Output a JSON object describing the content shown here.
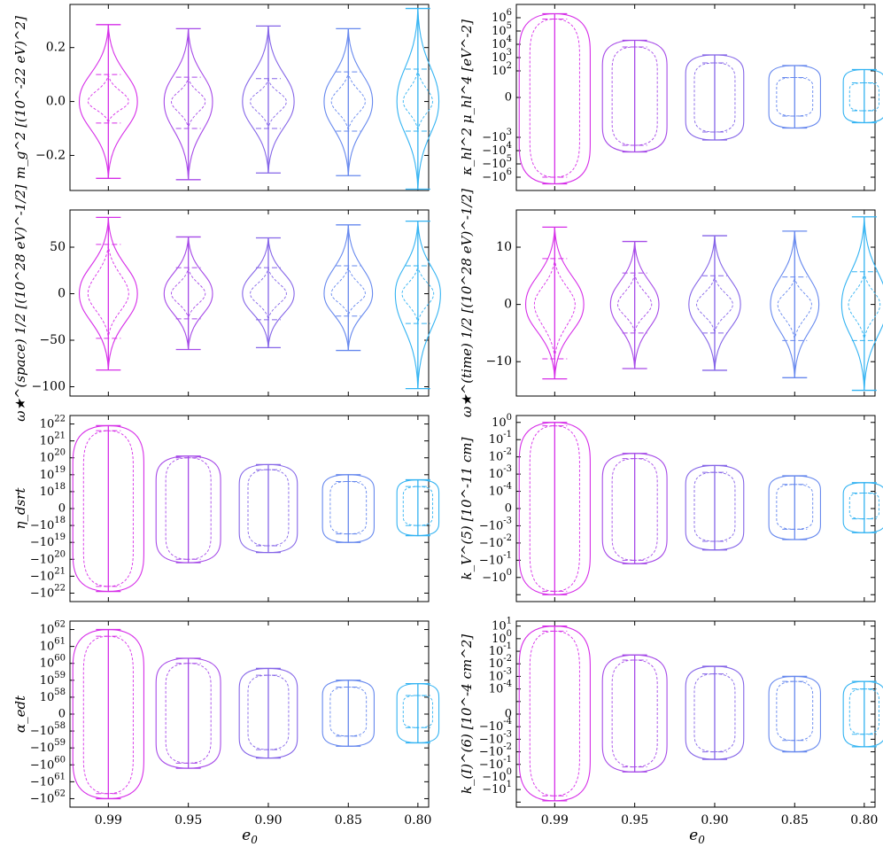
{
  "figure": {
    "xlabel_main": "e",
    "xlabel_sub": "0",
    "colors": [
      "#d62ee8",
      "#a64ae8",
      "#8565e8",
      "#6688ee",
      "#33b3f2"
    ]
  },
  "chart_data": [
    {
      "type": "violin",
      "ylabel": "m_g^2 [(10^-22 eV)^2]",
      "yscale": "linear",
      "ylim": [
        -0.33,
        0.36
      ],
      "yticks": [
        -0.2,
        0.0,
        0.2
      ],
      "ytick_labels": [
        "−0.2",
        "0.0",
        "0.2"
      ],
      "categories": [
        "0.99",
        "0.95",
        "0.90",
        "0.85",
        "0.80"
      ],
      "violins": [
        {
          "min": -0.285,
          "max": 0.285,
          "q1": -0.08,
          "q3": 0.1,
          "width": 0.18
        },
        {
          "min": -0.29,
          "max": 0.27,
          "q1": -0.1,
          "q3": 0.09,
          "width": 0.15
        },
        {
          "min": -0.265,
          "max": 0.28,
          "q1": -0.1,
          "q3": 0.085,
          "width": 0.16
        },
        {
          "min": -0.275,
          "max": 0.27,
          "q1": -0.11,
          "q3": 0.11,
          "width": 0.15
        },
        {
          "min": -0.325,
          "max": 0.345,
          "q1": -0.11,
          "q3": 0.12,
          "width": 0.13
        }
      ]
    },
    {
      "type": "violin",
      "ylabel": "κ_hl^2 μ_hl^4 [eV^-2]",
      "yscale": "symlog",
      "ylim": [
        -7,
        7
      ],
      "yticks": [
        6,
        5,
        4,
        3,
        2,
        0,
        -3,
        -4,
        -5,
        -6
      ],
      "ytick_labels": [
        "10^6",
        "10^5",
        "10^4",
        "10^3",
        "10^2",
        "0",
        "−10^3",
        "−10^4",
        "−10^5",
        "−10^6"
      ],
      "categories": [
        "0.99",
        "0.95",
        "0.90",
        "0.85",
        "0.80"
      ],
      "violins": [
        {
          "min": -6.5,
          "max": 6.3,
          "q1": -6.0,
          "q3": 5.9,
          "width": 0.22
        },
        {
          "min": -4.1,
          "max": 4.3,
          "q1": -3.6,
          "q3": 3.8,
          "width": 0.2
        },
        {
          "min": -3.2,
          "max": 3.2,
          "q1": -2.6,
          "q3": 2.6,
          "width": 0.18
        },
        {
          "min": -2.3,
          "max": 2.4,
          "q1": -1.4,
          "q3": 1.5,
          "width": 0.16
        },
        {
          "min": -1.9,
          "max": 2.1,
          "q1": -1.0,
          "q3": 1.1,
          "width": 0.13
        }
      ]
    },
    {
      "type": "violin",
      "ylabel": "ω★^(space) 1/2 [(10^28 eV)^-1/2]",
      "yscale": "linear",
      "ylim": [
        -110,
        90
      ],
      "yticks": [
        50,
        0,
        -50,
        -100
      ],
      "ytick_labels": [
        "50",
        "0",
        "−50",
        "−100"
      ],
      "categories": [
        "0.99",
        "0.95",
        "0.90",
        "0.85",
        "0.80"
      ],
      "violins": [
        {
          "min": -82,
          "max": 82,
          "q1": -48,
          "q3": 53,
          "width": 0.18
        },
        {
          "min": -60,
          "max": 61,
          "q1": -27,
          "q3": 28,
          "width": 0.15
        },
        {
          "min": -58,
          "max": 60,
          "q1": -28,
          "q3": 28,
          "width": 0.16
        },
        {
          "min": -61,
          "max": 74,
          "q1": -24,
          "q3": 30,
          "width": 0.15
        },
        {
          "min": -102,
          "max": 78,
          "q1": -32,
          "q3": 30,
          "width": 0.14
        }
      ]
    },
    {
      "type": "violin",
      "ylabel": "ω★^(time) 1/2 [(10^28 eV)^-1/2]",
      "yscale": "linear",
      "ylim": [
        -16,
        16.5
      ],
      "yticks": [
        10,
        0,
        -10
      ],
      "ytick_labels": [
        "10",
        "0",
        "−10"
      ],
      "categories": [
        "0.99",
        "0.95",
        "0.90",
        "0.85",
        "0.80"
      ],
      "violins": [
        {
          "min": -13,
          "max": 13.5,
          "q1": -9.5,
          "q3": 8,
          "width": 0.18
        },
        {
          "min": -11.2,
          "max": 11,
          "q1": -5,
          "q3": 5.5,
          "width": 0.15
        },
        {
          "min": -11.5,
          "max": 12,
          "q1": -5,
          "q3": 5,
          "width": 0.16
        },
        {
          "min": -12.8,
          "max": 12.8,
          "q1": -6.3,
          "q3": 4.8,
          "width": 0.15
        },
        {
          "min": -15,
          "max": 15.3,
          "q1": -6.3,
          "q3": 5.7,
          "width": 0.14
        }
      ]
    },
    {
      "type": "violin",
      "ylabel": "η_dsrt",
      "yscale": "symlog",
      "ylim": [
        -5.5,
        5.5
      ],
      "yticks": [
        5,
        4,
        3,
        2,
        1,
        0,
        -1,
        -2,
        -3,
        -4,
        -5
      ],
      "ytick_labels": [
        "10^22",
        "10^21",
        "10^20",
        "10^19",
        "10^18",
        "0",
        "−10^18",
        "−10^19",
        "−10^20",
        "−10^21",
        "−10^22"
      ],
      "categories": [
        "0.99",
        "0.95",
        "0.90",
        "0.85",
        "0.80"
      ],
      "violins": [
        {
          "min": -4.9,
          "max": 4.9,
          "q1": -4.6,
          "q3": 4.6,
          "width": 0.22
        },
        {
          "min": -3.2,
          "max": 3.1,
          "q1": -3.0,
          "q3": 3.0,
          "width": 0.2
        },
        {
          "min": -2.6,
          "max": 2.6,
          "q1": -2.2,
          "q3": 2.3,
          "width": 0.18
        },
        {
          "min": -2.0,
          "max": 2.0,
          "q1": -1.5,
          "q3": 1.6,
          "width": 0.16
        },
        {
          "min": -1.6,
          "max": 1.7,
          "q1": -1.0,
          "q3": 1.3,
          "width": 0.13
        }
      ]
    },
    {
      "type": "violin",
      "ylabel": "k_V^(5) [10^-11 cm]",
      "yscale": "symlog",
      "ylim": [
        -5.4,
        5.4
      ],
      "yticks": [
        5,
        4,
        3,
        2,
        1,
        0,
        -1,
        -2,
        -3,
        -4,
        -5
      ],
      "ytick_labels": [
        "10^0",
        "10^-1",
        "10^-2",
        "10^-3",
        "10^-4",
        "0",
        "−10^-3",
        "−10^-2",
        "−10^-1",
        "−10^0",
        ""
      ],
      "categories": [
        "0.99",
        "0.95",
        "0.90",
        "0.85",
        "0.80"
      ],
      "violins": [
        {
          "min": -5.0,
          "max": 5.0,
          "q1": -4.8,
          "q3": 4.8,
          "width": 0.22
        },
        {
          "min": -3.2,
          "max": 3.2,
          "q1": -3.0,
          "q3": 2.9,
          "width": 0.2
        },
        {
          "min": -2.4,
          "max": 2.5,
          "q1": -1.9,
          "q3": 2.1,
          "width": 0.18
        },
        {
          "min": -1.8,
          "max": 1.9,
          "q1": -1.2,
          "q3": 1.4,
          "width": 0.16
        },
        {
          "min": -1.4,
          "max": 1.5,
          "q1": -0.6,
          "q3": 0.9,
          "width": 0.13
        }
      ]
    },
    {
      "type": "violin",
      "ylabel": "α_edt",
      "yscale": "symlog",
      "ylim": [
        -5.5,
        5.5
      ],
      "yticks": [
        5,
        4,
        3,
        2,
        1,
        0,
        -1,
        -2,
        -3,
        -4,
        -5
      ],
      "ytick_labels": [
        "10^62",
        "10^61",
        "10^60",
        "10^59",
        "10^58",
        "0",
        "−10^58",
        "−10^59",
        "−10^60",
        "−10^61",
        "−10^62"
      ],
      "categories": [
        "0.99",
        "0.95",
        "0.90",
        "0.85",
        "0.80"
      ],
      "violins": [
        {
          "min": -5.0,
          "max": 5.0,
          "q1": -4.7,
          "q3": 4.6,
          "width": 0.22
        },
        {
          "min": -3.2,
          "max": 3.3,
          "q1": -2.9,
          "q3": 3.0,
          "width": 0.2
        },
        {
          "min": -2.6,
          "max": 2.7,
          "q1": -2.1,
          "q3": 2.3,
          "width": 0.18
        },
        {
          "min": -1.9,
          "max": 2.0,
          "q1": -1.3,
          "q3": 1.6,
          "width": 0.16
        },
        {
          "min": -1.7,
          "max": 1.8,
          "q1": -0.8,
          "q3": 1.1,
          "width": 0.13
        }
      ]
    },
    {
      "type": "violin",
      "ylabel": "k_(I)^(6) [10^-4 cm^2]",
      "yscale": "symlog",
      "ylim": [
        -7.4,
        7.4
      ],
      "yticks": [
        7,
        6,
        5,
        4,
        3,
        2,
        1,
        0,
        -1,
        -2,
        -3,
        -4,
        -5,
        -6,
        -7
      ],
      "ytick_labels": [
        "10^1",
        "10^0",
        "10^-1",
        "10^-2",
        "10^-3",
        "10^-4",
        "",
        "0",
        "−10^-4",
        "−10^-3",
        "−10^-2",
        "−10^-1",
        "−10^0",
        "−10^1",
        ""
      ],
      "categories": [
        "0.99",
        "0.95",
        "0.90",
        "0.85",
        "0.80"
      ],
      "violins": [
        {
          "min": -6.9,
          "max": 7.0,
          "q1": -6.5,
          "q3": 6.6,
          "width": 0.22
        },
        {
          "min": -4.6,
          "max": 4.7,
          "q1": -4.2,
          "q3": 4.3,
          "width": 0.2
        },
        {
          "min": -3.6,
          "max": 3.8,
          "q1": -3.0,
          "q3": 3.2,
          "width": 0.18
        },
        {
          "min": -3.0,
          "max": 3.0,
          "q1": -2.1,
          "q3": 2.6,
          "width": 0.16
        },
        {
          "min": -2.6,
          "max": 2.6,
          "q1": -1.6,
          "q3": 2.0,
          "width": 0.13
        }
      ]
    }
  ]
}
